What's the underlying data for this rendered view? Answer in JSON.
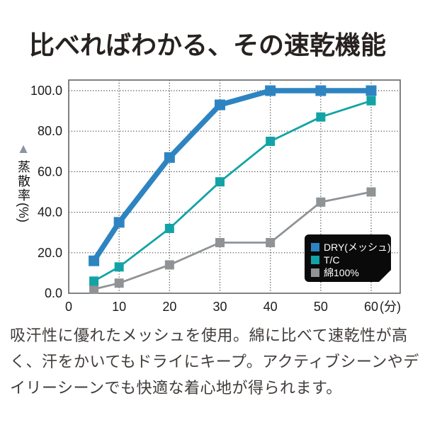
{
  "title": "比べればわかる、その速乾機能",
  "description": "吸汗性に優れたメッシュを使用。綿に比べて速乾性が高く、汗をかいてもドライにキープ。アクティブシーンやデイリーシーンでも快適な着心地が得られます。",
  "colors": {
    "axis": "#636363",
    "grid": "#3f3f3f",
    "tick_label": "#1b1b1b",
    "legend_bg": "#0a0a0a",
    "ylabel_triangle": "#8a95a3"
  },
  "chart_data": {
    "type": "line",
    "title": "",
    "x": [
      5,
      10,
      20,
      30,
      40,
      50,
      60
    ],
    "series": [
      {
        "name": "DRY(メッシュ)",
        "values": [
          16,
          35,
          67,
          93,
          100,
          100,
          100
        ],
        "color": "#2e84c1",
        "line_width": 7.5,
        "marker_size": 15
      },
      {
        "name": "T/C",
        "values": [
          6,
          13,
          32,
          55,
          75,
          87,
          95
        ],
        "color": "#13a3a6",
        "line_width": 2.8,
        "marker_size": 13
      },
      {
        "name": "綿100%",
        "values": [
          2,
          5,
          14,
          25,
          25,
          45,
          50
        ],
        "color": "#8f9396",
        "line_width": 2.8,
        "marker_size": 13
      }
    ],
    "xlabel": "",
    "ylabel": "蒸散率",
    "ylabel_unit": "(%)",
    "ylabel_marker": "▲",
    "xunit": "(分)",
    "x_ticks": [
      0,
      10,
      20,
      30,
      40,
      50,
      60
    ],
    "y_ticks": [
      0,
      20,
      40,
      60,
      80,
      100
    ],
    "y_tick_labels": [
      "0.0",
      "20.0",
      "40.0",
      "60.0",
      "80.0",
      "100.0"
    ],
    "xlim": [
      0,
      66
    ],
    "ylim": [
      0,
      105
    ],
    "grid": "dotted",
    "legend_position": "inside-bottom-right"
  }
}
